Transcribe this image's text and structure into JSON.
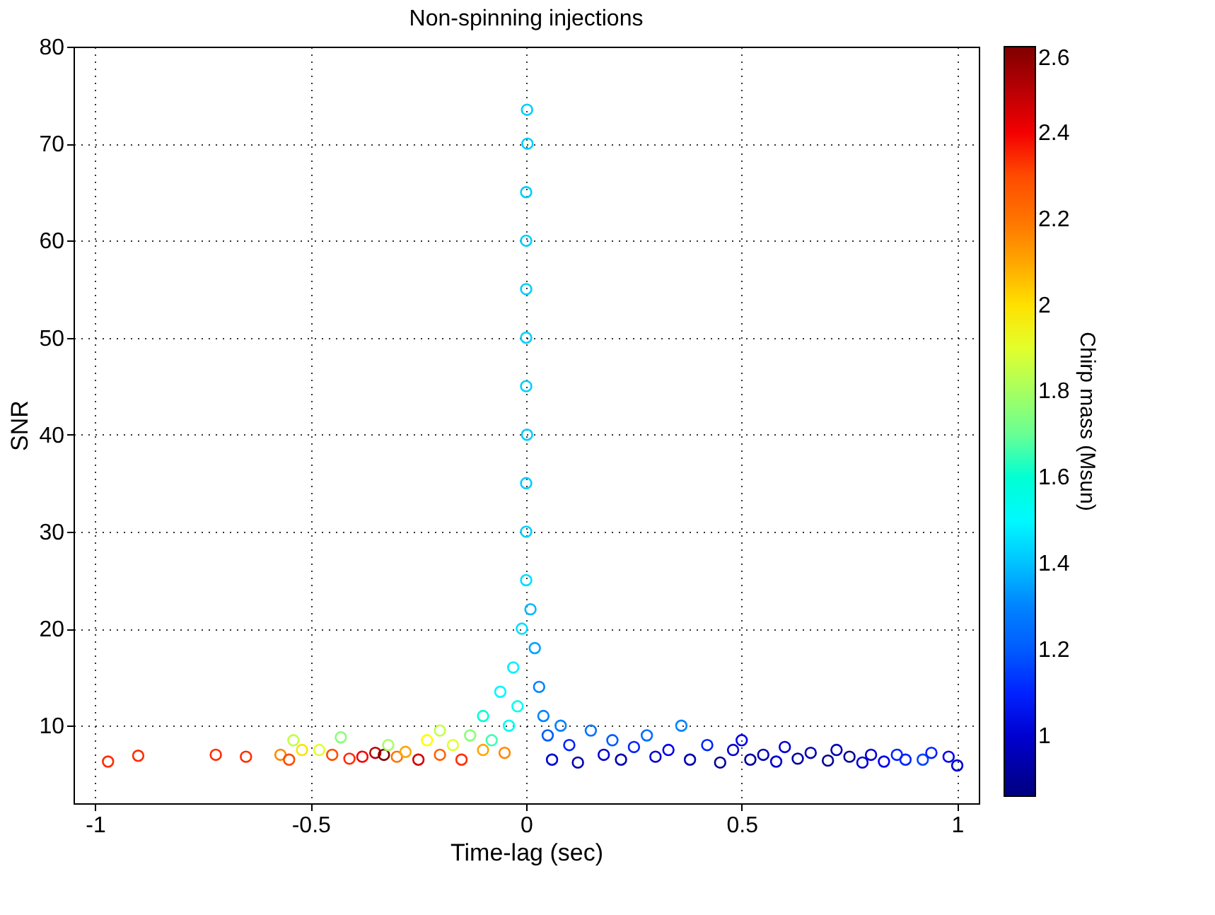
{
  "chart_data": {
    "type": "scatter",
    "title": "Non-spinning injections",
    "xlabel": "Time-lag (sec)",
    "ylabel": "SNR",
    "clabel": "Chirp mass (Msun)",
    "xlim": [
      -1.05,
      1.05
    ],
    "xticks": [
      -1,
      -0.5,
      0,
      0.5,
      1
    ],
    "ylim": [
      2,
      80
    ],
    "yticks": [
      10,
      20,
      30,
      40,
      50,
      60,
      70,
      80
    ],
    "clim": [
      0.86,
      2.6
    ],
    "cticks": [
      1,
      1.2,
      1.4,
      1.6,
      1.8,
      2,
      2.2,
      2.4,
      2.6
    ],
    "grid": true,
    "marker": "circle",
    "x": [
      -0.97,
      -0.9,
      -0.72,
      -0.65,
      -0.57,
      -0.55,
      -0.54,
      -0.52,
      -0.48,
      -0.45,
      -0.43,
      -0.41,
      -0.38,
      -0.35,
      -0.33,
      -0.32,
      -0.3,
      -0.28,
      -0.25,
      -0.23,
      -0.2,
      -0.2,
      -0.17,
      -0.15,
      -0.13,
      -0.1,
      -0.1,
      -0.08,
      -0.06,
      -0.05,
      -0.04,
      -0.03,
      -0.02,
      -0.01,
      0,
      0,
      0,
      0.002,
      0,
      0,
      0,
      0,
      0,
      0.003,
      0.002,
      0.01,
      0.02,
      0.03,
      0.04,
      0.05,
      0.06,
      0.08,
      0.1,
      0.12,
      0.15,
      0.18,
      0.2,
      0.22,
      0.25,
      0.28,
      0.3,
      0.33,
      0.36,
      0.38,
      0.42,
      0.45,
      0.48,
      0.5,
      0.52,
      0.55,
      0.58,
      0.6,
      0.63,
      0.66,
      0.7,
      0.72,
      0.75,
      0.78,
      0.8,
      0.83,
      0.86,
      0.88,
      0.92,
      0.94,
      0.98,
      1.0
    ],
    "values": [
      6.3,
      6.9,
      7.0,
      6.8,
      7.0,
      6.5,
      8.5,
      7.5,
      7.5,
      7.0,
      8.8,
      6.6,
      6.8,
      7.2,
      7.0,
      8.0,
      6.8,
      7.3,
      6.5,
      8.5,
      7.0,
      9.5,
      8.0,
      6.5,
      9.0,
      7.5,
      11,
      8.5,
      13.5,
      7.2,
      10,
      16,
      12,
      20,
      25,
      30,
      35,
      40,
      45,
      50,
      55,
      60,
      65,
      70,
      73.5,
      22,
      18,
      14,
      11,
      9,
      6.5,
      10,
      8,
      6.2,
      9.5,
      7,
      8.5,
      6.5,
      7.8,
      9,
      6.8,
      7.5,
      10,
      6.5,
      8,
      6.2,
      7.5,
      8.5,
      6.5,
      7.0,
      6.3,
      7.8,
      6.6,
      7.2,
      6.4,
      7.5,
      6.8,
      6.2,
      7.0,
      6.3,
      7.0,
      6.5,
      6.5,
      7.2,
      6.8,
      5.9
    ],
    "cvalues": [
      2.35,
      2.35,
      2.35,
      2.35,
      2.15,
      2.3,
      1.85,
      2.0,
      1.9,
      2.3,
      1.75,
      2.35,
      2.4,
      2.5,
      2.6,
      1.8,
      2.2,
      2.1,
      2.45,
      1.95,
      2.25,
      1.85,
      1.9,
      2.35,
      1.75,
      2.1,
      1.6,
      1.65,
      1.5,
      2.15,
      1.55,
      1.48,
      1.55,
      1.45,
      1.45,
      1.42,
      1.42,
      1.42,
      1.42,
      1.42,
      1.42,
      1.42,
      1.42,
      1.42,
      1.42,
      1.38,
      1.35,
      1.3,
      1.3,
      1.2,
      1.0,
      1.3,
      1.1,
      0.95,
      1.25,
      1.0,
      1.2,
      0.95,
      1.1,
      1.25,
      1.0,
      1.05,
      1.3,
      0.95,
      1.1,
      0.9,
      1.0,
      1.05,
      0.92,
      0.95,
      1.0,
      1.0,
      0.92,
      0.95,
      0.9,
      0.95,
      0.9,
      1.0,
      1.0,
      1.05,
      1.1,
      1.1,
      1.15,
      1.1,
      1.05,
      1.0
    ]
  }
}
